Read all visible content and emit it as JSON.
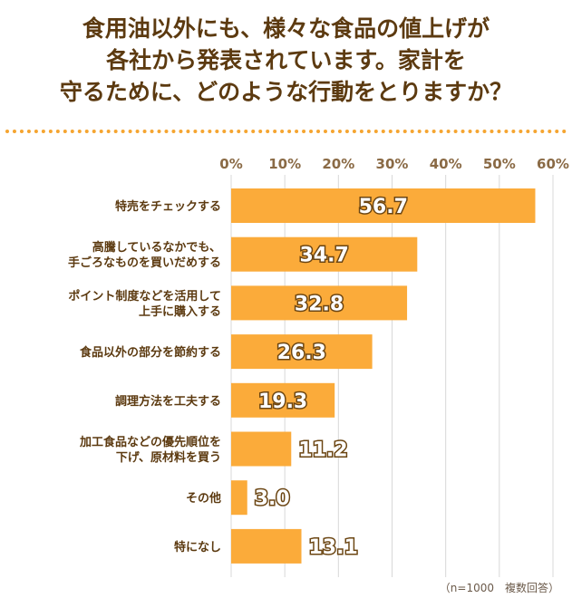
{
  "title_lines": [
    "食用油以外にも、様々な食品の値上げが",
    "各社から発表されています。家計を",
    "守るために、どのような行動をとりますか？"
  ],
  "note": "（n=1000　複数回答）",
  "colors": {
    "bar": "#fbab3a",
    "text": "#5c3a10",
    "grid": "#d8d8d8",
    "dots": "#f5a531"
  },
  "chart_data": {
    "type": "bar",
    "orientation": "horizontal",
    "categories": [
      [
        "特売をチェックする"
      ],
      [
        "高騰しているなかでも、",
        "手ごろなものを買いだめする"
      ],
      [
        "ポイント制度などを活用して",
        "上手に購入する"
      ],
      [
        "食品以外の部分を節約する"
      ],
      [
        "調理方法を工夫する"
      ],
      [
        "加工食品などの優先順位を",
        "下げ、原材料を買う"
      ],
      [
        "その他"
      ],
      [
        "特になし"
      ]
    ],
    "values": [
      56.7,
      34.7,
      32.8,
      26.3,
      19.3,
      11.2,
      3.0,
      13.1
    ],
    "value_labels": [
      "56.7",
      "34.7",
      "32.8",
      "26.3",
      "19.3",
      "11.2",
      "3.0",
      "13.1"
    ],
    "xlim": [
      0,
      60
    ],
    "xticks": [
      "0%",
      "10%",
      "20%",
      "30%",
      "40%",
      "50%",
      "60%"
    ],
    "grid": true
  }
}
